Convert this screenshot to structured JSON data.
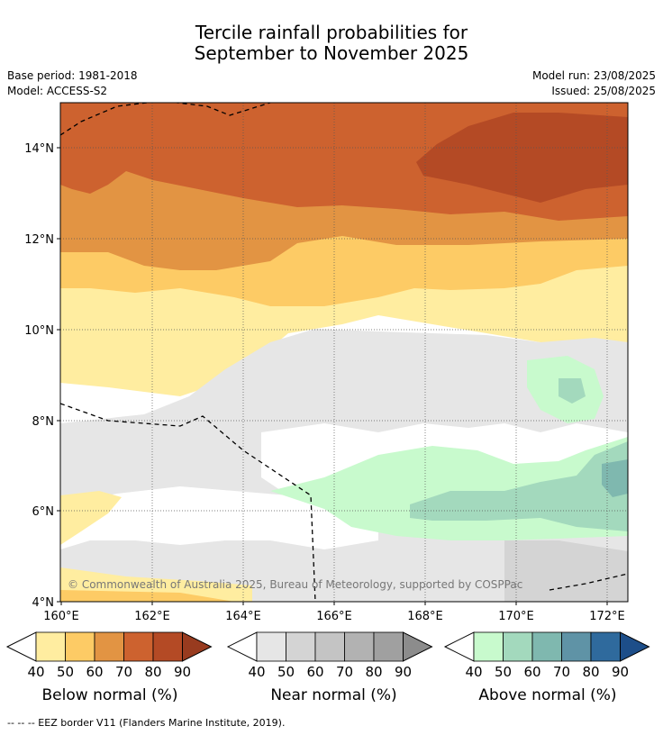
{
  "title": {
    "line1": "Tercile rainfall probabilities for",
    "line2": "September to November 2025"
  },
  "meta": {
    "base_period": "Base period: 1981-2018",
    "model": "Model: ACCESS-S2",
    "model_run": "Model run: 23/08/2025",
    "issued": "Issued: 25/08/2025"
  },
  "map": {
    "lat_labels": [
      "14°N",
      "12°N",
      "10°N",
      "8°N",
      "6°N",
      "4°N"
    ],
    "lon_labels": [
      "160°E",
      "162°E",
      "164°E",
      "166°E",
      "168°E",
      "170°E",
      "172°E"
    ],
    "copyright": "© Commonwealth of Australia 2025, Bureau of Meteorology, supported by COSPPac"
  },
  "colorbars": [
    {
      "label": "Below normal (%)",
      "ticks": [
        "40",
        "50",
        "60",
        "70",
        "80",
        "90"
      ],
      "colors": [
        "#ffeda0",
        "#fdcb65",
        "#e29443",
        "#cd622f",
        "#b44a25",
        "#983b1f"
      ]
    },
    {
      "label": "Near normal (%)",
      "ticks": [
        "40",
        "50",
        "60",
        "70",
        "80",
        "90"
      ],
      "colors": [
        "#e6e6e6",
        "#d4d4d4",
        "#c4c4c4",
        "#b2b2b2",
        "#a0a0a0",
        "#8c8c8c"
      ]
    },
    {
      "label": "Above normal (%)",
      "ticks": [
        "40",
        "50",
        "60",
        "70",
        "80",
        "90"
      ],
      "colors": [
        "#c8facd",
        "#a3d9bd",
        "#7fb8af",
        "#5f93a6",
        "#2f6a9d",
        "#1d4e89"
      ]
    }
  ],
  "footer": "--  --  -- EEZ border V11 (Flanders Marine Institute, 2019)."
}
